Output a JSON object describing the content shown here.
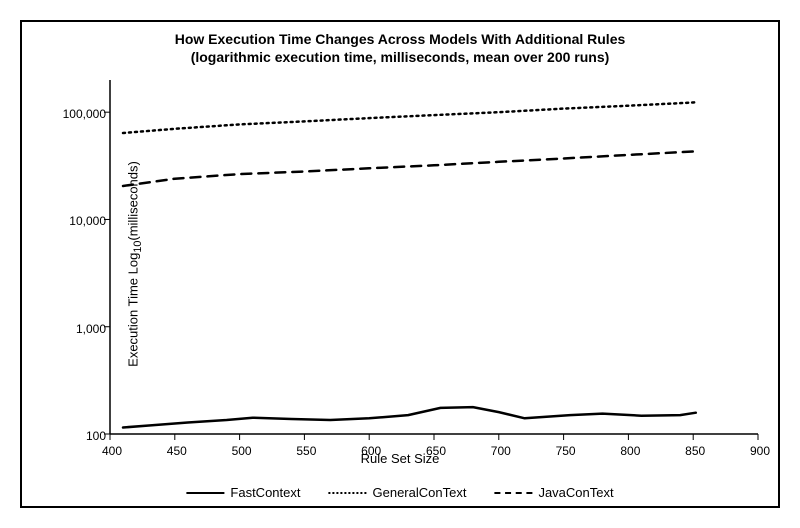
{
  "chart": {
    "type": "line",
    "title_line1": "How Execution Time Changes Across Models With Additional Rules",
    "title_line2_prefix": "(",
    "title_line2_bold": "logarithmic",
    "title_line2_suffix": " execution time, milliseconds, mean over 200 runs)",
    "title_fontsize": 14,
    "xlabel": "Rule Set Size",
    "ylabel_prefix": "Execution Time Log",
    "ylabel_sub": "10",
    "ylabel_suffix": "(milliseconds)",
    "label_fontsize": 13,
    "tick_fontsize": 12,
    "xlim": [
      400,
      900
    ],
    "ylim_log10": [
      2,
      5.3
    ],
    "xticks": [
      400,
      450,
      500,
      550,
      600,
      650,
      700,
      750,
      800,
      850,
      900
    ],
    "yticks_log10": [
      2,
      3,
      4,
      5
    ],
    "ytick_labels": [
      "100",
      "1,000",
      "10,000",
      "100,000"
    ],
    "background_color": "#ffffff",
    "border_color": "#000000",
    "axis_color": "#000000",
    "series": [
      {
        "name": "FastContext",
        "dash": "solid",
        "width": 2.5,
        "color": "#000000",
        "x": [
          410,
          430,
          460,
          490,
          510,
          540,
          570,
          600,
          630,
          655,
          680,
          700,
          720,
          755,
          780,
          810,
          840,
          852
        ],
        "y": [
          115,
          120,
          128,
          135,
          142,
          138,
          135,
          140,
          150,
          175,
          178,
          160,
          140,
          150,
          155,
          148,
          150,
          158
        ]
      },
      {
        "name": "GeneralConText",
        "dash": "dotted",
        "width": 2.5,
        "color": "#000000",
        "x": [
          410,
          450,
          500,
          550,
          600,
          650,
          700,
          750,
          800,
          850,
          852
        ],
        "y": [
          64000,
          70000,
          77000,
          82000,
          88000,
          94000,
          100000,
          108000,
          115000,
          123000,
          124000
        ]
      },
      {
        "name": "JavaConText",
        "dash": "dashed",
        "width": 2.5,
        "color": "#000000",
        "x": [
          410,
          450,
          500,
          550,
          600,
          650,
          700,
          750,
          800,
          850,
          852
        ],
        "y": [
          20500,
          24000,
          26500,
          28000,
          30000,
          32000,
          34500,
          37000,
          40000,
          43000,
          43500
        ]
      }
    ],
    "legend_order": [
      "FastContext",
      "GeneralConText",
      "JavaConText"
    ]
  }
}
